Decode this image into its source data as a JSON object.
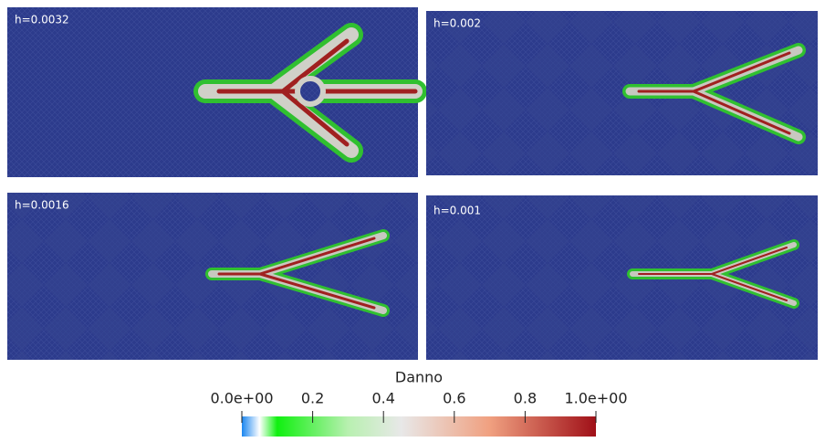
{
  "panels": [
    {
      "label": "h=0.0032"
    },
    {
      "label": "h=0.002"
    },
    {
      "label": "h=0.0016"
    },
    {
      "label": "h=0.001"
    }
  ],
  "colorbar": {
    "title": "Danno",
    "ticks": [
      {
        "value": 0,
        "label": "0.0e+00"
      },
      0.2,
      0.4,
      0.6,
      0.8,
      {
        "value": 1,
        "label": "1.0e+00"
      }
    ]
  }
}
